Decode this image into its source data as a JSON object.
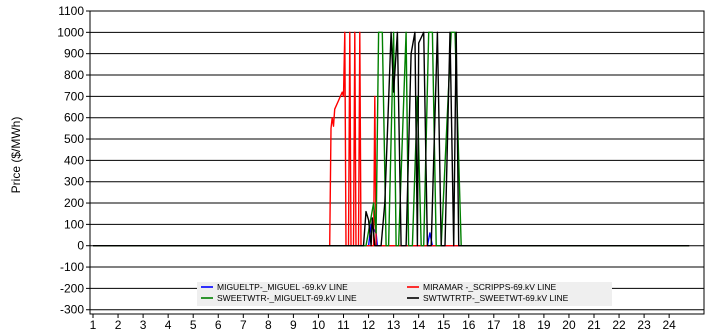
{
  "chart_data": {
    "type": "line",
    "title": "",
    "xlabel": "",
    "ylabel": "Price ($/MWh)",
    "xlim": [
      1,
      24.8
    ],
    "ylim": [
      -320,
      1100
    ],
    "x_ticks": [
      1,
      2,
      3,
      4,
      5,
      6,
      7,
      8,
      9,
      10,
      11,
      12,
      13,
      14,
      15,
      16,
      17,
      18,
      19,
      20,
      21,
      22,
      23,
      24
    ],
    "y_ticks": [
      1100,
      1000,
      900,
      800,
      700,
      600,
      500,
      400,
      300,
      200,
      100,
      0,
      -100,
      -200,
      -300
    ],
    "grid": "horizontal",
    "legend_position": "bottom-center",
    "series": [
      {
        "name": "MIGUELTP-_MIGUEL -69.kV LINE",
        "color": "#0000ff",
        "points": [
          [
            1,
            0
          ],
          [
            12.0,
            0
          ],
          [
            12.1,
            100
          ],
          [
            12.2,
            80
          ],
          [
            12.3,
            60
          ],
          [
            12.35,
            0
          ],
          [
            14.35,
            0
          ],
          [
            14.45,
            60
          ],
          [
            14.55,
            0
          ],
          [
            24.8,
            0
          ]
        ]
      },
      {
        "name": "MIRAMAR -_SCRIPPS-69.kV LINE",
        "color": "#ff0000",
        "points": [
          [
            1,
            0
          ],
          [
            10.45,
            0
          ],
          [
            10.5,
            550
          ],
          [
            10.55,
            600
          ],
          [
            10.6,
            560
          ],
          [
            10.65,
            640
          ],
          [
            10.8,
            680
          ],
          [
            10.95,
            720
          ],
          [
            11.0,
            700
          ],
          [
            11.05,
            1000
          ],
          [
            11.1,
            0
          ],
          [
            11.2,
            0
          ],
          [
            11.25,
            1000
          ],
          [
            11.3,
            0
          ],
          [
            11.4,
            0
          ],
          [
            11.45,
            1000
          ],
          [
            11.5,
            0
          ],
          [
            11.6,
            0
          ],
          [
            11.65,
            1000
          ],
          [
            11.7,
            0
          ],
          [
            12.2,
            0
          ],
          [
            12.25,
            700
          ],
          [
            12.3,
            0
          ],
          [
            24.8,
            0
          ]
        ]
      },
      {
        "name": "SWEETWTR-_MIGUELT-69.kV LINE",
        "color": "#008000",
        "points": [
          [
            1,
            0
          ],
          [
            11.9,
            0
          ],
          [
            12.2,
            200
          ],
          [
            12.3,
            60
          ],
          [
            12.4,
            1000
          ],
          [
            12.55,
            1000
          ],
          [
            12.7,
            0
          ],
          [
            12.8,
            0
          ],
          [
            13.0,
            1000
          ],
          [
            13.1,
            0
          ],
          [
            13.2,
            0
          ],
          [
            13.5,
            1000
          ],
          [
            13.6,
            0
          ],
          [
            13.75,
            0
          ],
          [
            13.95,
            700
          ],
          [
            14.1,
            0
          ],
          [
            14.2,
            0
          ],
          [
            14.4,
            1000
          ],
          [
            14.55,
            1000
          ],
          [
            14.7,
            0
          ],
          [
            14.9,
            0
          ],
          [
            15.3,
            1000
          ],
          [
            15.45,
            1000
          ],
          [
            15.7,
            0
          ],
          [
            24.8,
            0
          ]
        ]
      },
      {
        "name": "SWTWTRTP-_SWEETWT-69.kV LINE",
        "color": "#000000",
        "points": [
          [
            1,
            0
          ],
          [
            11.8,
            0
          ],
          [
            11.9,
            160
          ],
          [
            12.0,
            120
          ],
          [
            12.1,
            0
          ],
          [
            12.15,
            130
          ],
          [
            12.25,
            0
          ],
          [
            12.5,
            0
          ],
          [
            12.65,
            200
          ],
          [
            12.8,
            680
          ],
          [
            12.9,
            1000
          ],
          [
            13.0,
            720
          ],
          [
            13.15,
            1000
          ],
          [
            13.3,
            0
          ],
          [
            13.5,
            0
          ],
          [
            13.7,
            900
          ],
          [
            13.85,
            1000
          ],
          [
            13.95,
            0
          ],
          [
            14.0,
            950
          ],
          [
            14.2,
            1000
          ],
          [
            14.35,
            0
          ],
          [
            14.5,
            0
          ],
          [
            14.75,
            1000
          ],
          [
            14.9,
            0
          ],
          [
            15.05,
            0
          ],
          [
            15.25,
            1000
          ],
          [
            15.4,
            0
          ],
          [
            15.5,
            1000
          ],
          [
            15.6,
            0
          ],
          [
            24.8,
            0
          ]
        ]
      }
    ]
  }
}
